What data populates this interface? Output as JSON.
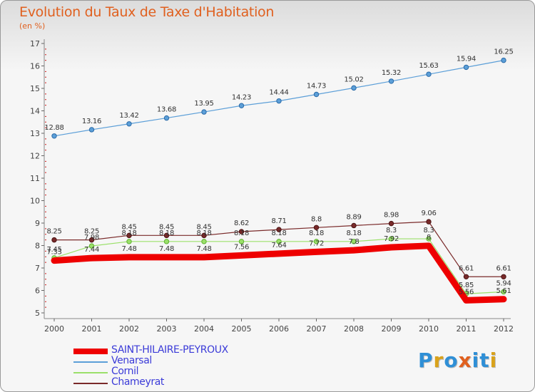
{
  "title": "Evolution du Taux de Taxe d'Habitation",
  "unit_label": "(en %)",
  "logo": {
    "letters": [
      "P",
      "r",
      "o",
      "x",
      "i",
      "t",
      "i"
    ],
    "colors": [
      "#2f8fd6",
      "#d9a21b",
      "#2f8fd6",
      "#e0601f",
      "#2f8fd6",
      "#2f8fd6",
      "#d9a21b"
    ]
  },
  "chart_data": {
    "type": "line",
    "title": "Evolution du Taux de Taxe d'Habitation",
    "ylabel": "(en %)",
    "xlabel": "",
    "x": [
      "2000",
      "2001",
      "2002",
      "2003",
      "2004",
      "2005",
      "2006",
      "2007",
      "2008",
      "2009",
      "2010",
      "2011",
      "2012"
    ],
    "ylim": [
      5,
      17
    ],
    "yticks": [
      5,
      6,
      7,
      8,
      9,
      10,
      11,
      12,
      13,
      14,
      15,
      16,
      17
    ],
    "grid": false,
    "legend_position": "bottom-left",
    "series": [
      {
        "name": "SAINT-HILAIRE-PEYROUX",
        "color": "#ee0000",
        "values": [
          7.33,
          7.44,
          7.48,
          7.48,
          7.48,
          7.56,
          7.64,
          7.72,
          7.79,
          7.92,
          7.99,
          5.56,
          5.61
        ],
        "labels": [
          "7.33",
          "7.44",
          "7.48",
          "7.48",
          "7.48",
          "7.56",
          "7.64",
          "7.72",
          "7.8",
          "7.92",
          "8",
          "5.56",
          "5.61"
        ]
      },
      {
        "name": "Venarsal",
        "color": "#5c9fd8",
        "values": [
          12.88,
          13.16,
          13.42,
          13.68,
          13.95,
          14.23,
          14.44,
          14.73,
          15.02,
          15.32,
          15.63,
          15.94,
          16.25
        ],
        "labels": [
          "12.88",
          "13.16",
          "13.42",
          "13.68",
          "13.95",
          "14.23",
          "14.44",
          "14.73",
          "15.02",
          "15.32",
          "15.63",
          "15.94",
          "16.25"
        ]
      },
      {
        "name": "Cornil",
        "color": "#9be06a",
        "values": [
          7.45,
          7.98,
          8.18,
          8.18,
          8.18,
          8.18,
          8.18,
          8.18,
          8.18,
          8.3,
          8.3,
          5.85,
          5.94
        ],
        "labels": [
          "7.45",
          "7.98",
          "8.18",
          "8.18",
          "8.18",
          "8.18",
          "8.18",
          "8.18",
          "8.18",
          "8.3",
          "8.3",
          "5.85",
          "5.94"
        ]
      },
      {
        "name": "Chameyrat",
        "color": "#7a2a2a",
        "values": [
          8.25,
          8.25,
          8.45,
          8.45,
          8.45,
          8.62,
          8.71,
          8.8,
          8.89,
          8.98,
          9.06,
          6.61,
          6.61
        ],
        "labels": [
          "8.25",
          "8.25",
          "8.45",
          "8.45",
          "8.45",
          "8.62",
          "8.71",
          "8.8",
          "8.89",
          "8.98",
          "9.06",
          "6.61",
          "6.61"
        ]
      }
    ]
  }
}
